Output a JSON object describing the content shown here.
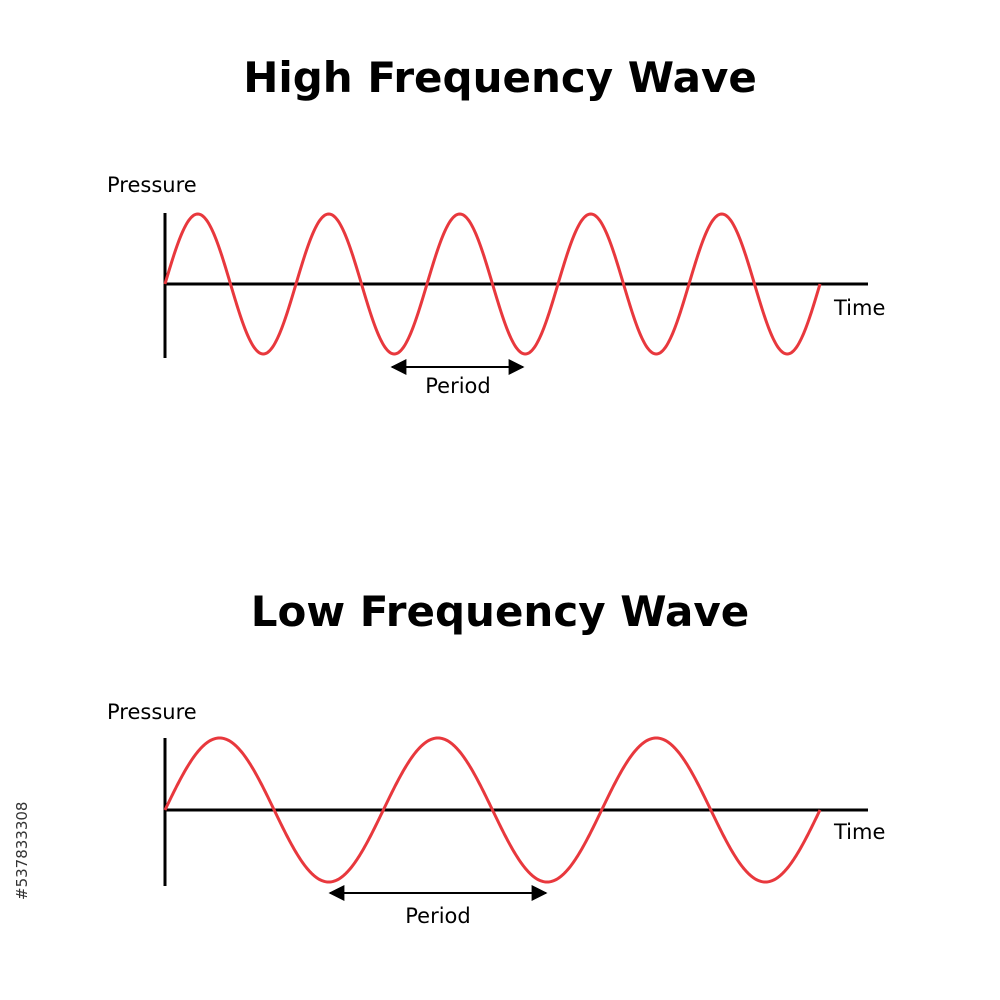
{
  "colors": {
    "background": "#ffffff",
    "axis": "#000000",
    "wave": "#e8383d",
    "text": "#000000",
    "side_text": "#333333"
  },
  "panels": [
    {
      "title": "High Frequency Wave",
      "y_label": "Pressure",
      "x_label": "Time",
      "period_label": "Period",
      "cycles": 5
    },
    {
      "title": "Low Frequency Wave",
      "y_label": "Pressure",
      "x_label": "Time",
      "period_label": "Period",
      "cycles": 3
    }
  ],
  "side_id": "#537833308"
}
